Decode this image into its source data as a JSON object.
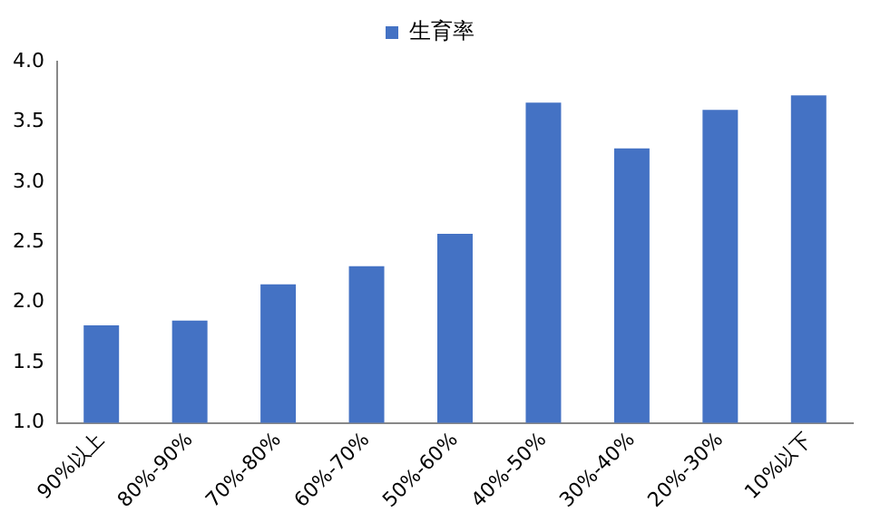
{
  "chart_data": {
    "type": "bar",
    "categories": [
      "90%以上",
      "80%-90%",
      "70%-80%",
      "60%-70%",
      "50%-60%",
      "40%-50%",
      "30%-40%",
      "20%-30%",
      "10%以下"
    ],
    "series": [
      {
        "name": "生育率",
        "color": "#4472c4",
        "values": [
          1.81,
          1.85,
          2.15,
          2.3,
          2.57,
          3.66,
          3.28,
          3.6,
          3.72
        ]
      }
    ],
    "ylim": [
      1.0,
      4.0
    ],
    "yticks": [
      {
        "value": 1,
        "label": "1.0"
      },
      {
        "value": 1.5,
        "label": "1.5"
      },
      {
        "value": 2,
        "label": "2.0"
      },
      {
        "value": 2.5,
        "label": "2.5"
      },
      {
        "value": 3,
        "label": "3.0"
      },
      {
        "value": 3.5,
        "label": "3.5"
      },
      {
        "value": 4,
        "label": "4.0"
      }
    ],
    "grid": false,
    "legend": "top"
  }
}
